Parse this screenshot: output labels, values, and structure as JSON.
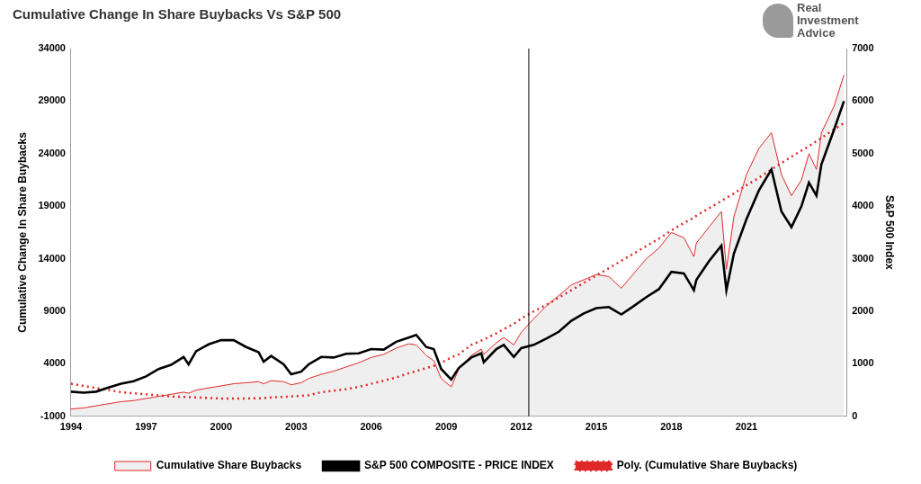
{
  "chart_data": {
    "type": "line",
    "title": "Cumulative Change In Share Buybacks Vs S&P 500",
    "annotation": "Real Investment Advice",
    "y_label": "Cumulative Change In Share Buybacks",
    "y2_label": "S&P 500 Index",
    "legend": "bottom",
    "grid": false,
    "vertical_line": 2012.3,
    "xlim": [
      1994,
      2025
    ],
    "xticks": [
      1994,
      1997,
      2000,
      2003,
      2006,
      2009,
      2012,
      2015,
      2018,
      2021
    ],
    "ylim": [
      -1000,
      34000
    ],
    "yticks": [
      -1000,
      4000,
      9000,
      14000,
      19000,
      24000,
      29000,
      34000
    ],
    "y2lim": [
      0,
      7000
    ],
    "y2ticks": [
      0,
      1000,
      2000,
      3000,
      4000,
      5000,
      6000,
      7000
    ],
    "x": [
      1994,
      1994.5,
      1995,
      1995.5,
      1996,
      1996.5,
      1997,
      1997.5,
      1998,
      1998.5,
      1998.7,
      1999,
      1999.5,
      2000,
      2000.5,
      2001,
      2001.5,
      2001.7,
      2002,
      2002.5,
      2002.8,
      2003.2,
      2003.5,
      2004,
      2004.5,
      2005,
      2005.5,
      2006,
      2006.5,
      2007,
      2007.5,
      2007.8,
      2008.2,
      2008.5,
      2008.8,
      2009.2,
      2009.5,
      2010,
      2010.4,
      2010.5,
      2011,
      2011.3,
      2011.7,
      2012,
      2012.5,
      2013,
      2013.5,
      2014,
      2014.5,
      2015,
      2015.5,
      2016,
      2016.5,
      2017,
      2017.5,
      2018,
      2018.5,
      2018.9,
      2019,
      2019.5,
      2020,
      2020.2,
      2020.5,
      2021,
      2021.5,
      2022,
      2022.4,
      2022.8,
      2023.2,
      2023.5,
      2023.8,
      2024,
      2024.5,
      2024.9
    ],
    "series": [
      {
        "name": "Cumulative Share Buybacks",
        "type": "area",
        "color": "#e02828",
        "line_style": "solid",
        "axis": "y",
        "values": [
          -300,
          -200,
          0,
          200,
          400,
          500,
          700,
          900,
          1100,
          1300,
          1200,
          1500,
          1700,
          1900,
          2100,
          2200,
          2300,
          2100,
          2400,
          2300,
          2000,
          2200,
          2600,
          3000,
          3300,
          3700,
          4100,
          4600,
          4900,
          5500,
          5900,
          5800,
          4800,
          4300,
          2600,
          1800,
          3500,
          4800,
          5400,
          4900,
          6000,
          6500,
          5800,
          7000,
          8300,
          9500,
          10500,
          11500,
          12000,
          12500,
          12300,
          11200,
          12600,
          14000,
          15000,
          16500,
          16000,
          14200,
          15500,
          17000,
          18500,
          13000,
          18000,
          22000,
          24500,
          26000,
          22000,
          20000,
          21500,
          24000,
          22500,
          26000,
          28500,
          31500
        ]
      },
      {
        "name": "S&P 500 COMPOSITE - PRICE INDEX",
        "type": "line",
        "color": "#000000",
        "line_style": "solid",
        "axis": "y2",
        "values": [
          470,
          450,
          470,
          550,
          620,
          670,
          760,
          900,
          980,
          1130,
          990,
          1240,
          1370,
          1450,
          1450,
          1320,
          1220,
          1040,
          1150,
          990,
          800,
          850,
          990,
          1130,
          1120,
          1190,
          1200,
          1280,
          1270,
          1420,
          1500,
          1550,
          1320,
          1280,
          900,
          700,
          920,
          1120,
          1200,
          1030,
          1280,
          1360,
          1130,
          1300,
          1360,
          1480,
          1610,
          1820,
          1960,
          2060,
          2080,
          1940,
          2100,
          2270,
          2420,
          2750,
          2720,
          2400,
          2600,
          2950,
          3250,
          2400,
          3100,
          3750,
          4300,
          4700,
          3900,
          3600,
          4000,
          4450,
          4200,
          4800,
          5450,
          6000
        ]
      },
      {
        "name": "Poly. (Cumulative Share Buybacks)",
        "type": "line",
        "color": "#e02828",
        "line_style": "dotted",
        "axis": "y",
        "values": [
          2100,
          1900,
          1700,
          1500,
          1300,
          1200,
          1100,
          1000,
          900,
          850,
          830,
          800,
          750,
          700,
          700,
          700,
          720,
          730,
          800,
          850,
          900,
          950,
          1000,
          1300,
          1450,
          1600,
          1800,
          2100,
          2400,
          2700,
          3100,
          3300,
          3600,
          3800,
          4100,
          4600,
          4900,
          5800,
          6200,
          6300,
          6900,
          7300,
          7800,
          8300,
          9000,
          9600,
          10300,
          11000,
          11700,
          12400,
          13100,
          13800,
          14500,
          15200,
          15900,
          16700,
          17400,
          17900,
          18100,
          18800,
          19500,
          19800,
          20200,
          21000,
          21700,
          22500,
          23100,
          23700,
          24300,
          24700,
          25200,
          25500,
          26300,
          26900
        ]
      }
    ]
  }
}
